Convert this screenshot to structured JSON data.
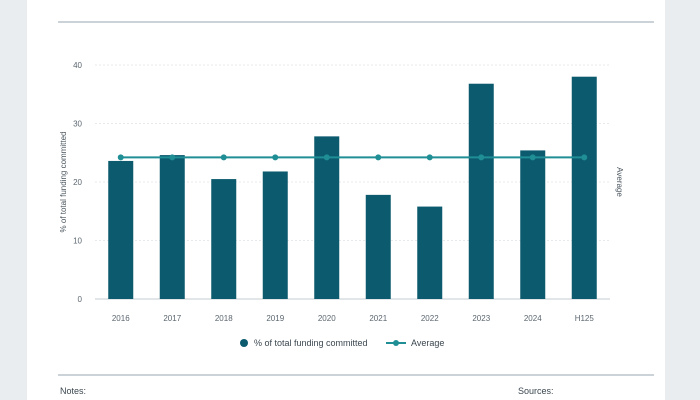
{
  "chart_data": {
    "type": "bar",
    "categories": [
      "2016",
      "2017",
      "2018",
      "2019",
      "2020",
      "2021",
      "2022",
      "2023",
      "2024",
      "H125"
    ],
    "series": [
      {
        "name": "% of total funding committed",
        "type": "bar",
        "values": [
          23.6,
          24.6,
          20.5,
          21.8,
          27.8,
          17.8,
          15.8,
          36.8,
          25.4,
          38.0
        ]
      },
      {
        "name": "Average",
        "type": "line",
        "values": [
          24.2,
          24.2,
          24.2,
          24.2,
          24.2,
          24.2,
          24.2,
          24.2,
          24.2,
          24.2
        ]
      }
    ],
    "title": "",
    "xlabel": "",
    "ylabel": "% of total funding committed",
    "ylabel_right": "Average",
    "ylim": [
      0,
      40
    ],
    "yticks": [
      0,
      10,
      20,
      30,
      40
    ],
    "grid": true,
    "legend_position": "bottom-center",
    "colors": {
      "bar": "#0b5a6e",
      "line": "#1f8e95"
    }
  },
  "footer": {
    "notes_label": "Notes:",
    "sources_label": "Sources:"
  }
}
